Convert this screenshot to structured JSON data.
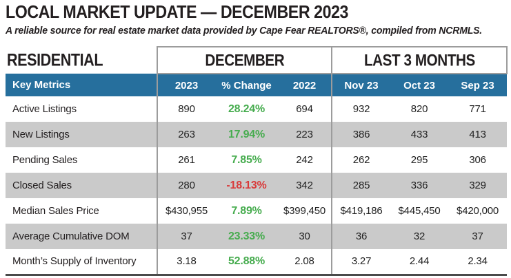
{
  "header": {
    "title": "LOCAL MARKET UPDATE — DECEMBER 2023",
    "subtitle": "A reliable source for real estate market data provided by Cape Fear REALTORS®, compiled from NCRMLS."
  },
  "table": {
    "section_title": "RESIDENTIAL",
    "group_headers": [
      "DECEMBER",
      "LAST 3 MONTHS"
    ],
    "columns": [
      "Key Metrics",
      "2023",
      "% Change",
      "2022",
      "Nov 23",
      "Oct 23",
      "Sep 23"
    ],
    "rows": [
      {
        "label": "Active Listings",
        "cells": [
          "890",
          "28.24%",
          "694",
          "932",
          "820",
          "771"
        ]
      },
      {
        "label": "New Listings",
        "cells": [
          "263",
          "17.94%",
          "223",
          "386",
          "433",
          "413"
        ]
      },
      {
        "label": "Pending Sales",
        "cells": [
          "261",
          "7.85%",
          "242",
          "262",
          "295",
          "306"
        ]
      },
      {
        "label": "Closed Sales",
        "cells": [
          "280",
          "-18.13%",
          "342",
          "285",
          "336",
          "329"
        ]
      },
      {
        "label": "Median Sales Price",
        "cells": [
          "$430,955",
          "7.89%",
          "$399,450",
          "$419,186",
          "$445,450",
          "$420,000"
        ]
      },
      {
        "label": "Average Cumulative DOM",
        "cells": [
          "37",
          "23.33%",
          "30",
          "36",
          "32",
          "37"
        ]
      },
      {
        "label": "Month’s Supply of Inventory",
        "cells": [
          "3.18",
          "52.88%",
          "2.08",
          "3.27",
          "2.44",
          "2.34"
        ]
      }
    ]
  },
  "colors": {
    "header_blue": "#266f9d",
    "row_stripe_gray": "#cacaca",
    "positive_green": "#46ac4e",
    "negative_red": "#d93a3a",
    "border_gray": "#9c9c9c",
    "bottom_rule": "#4a4a4a"
  }
}
